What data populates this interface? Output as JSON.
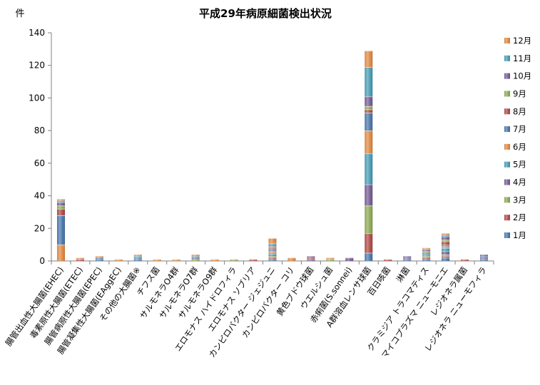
{
  "chart_data": {
    "type": "bar",
    "stacked": true,
    "title": "平成29年病原細菌検出状況",
    "ylabel": "件",
    "xlabel": "",
    "ylim": [
      0,
      140
    ],
    "yticks": [
      0,
      20,
      40,
      60,
      80,
      100,
      120,
      140
    ],
    "grid": false,
    "legend_position": "right",
    "categories": [
      "腸管出血性大腸菌(EHEC)",
      "毒素原性大腸菌(ETEC)",
      "腸管病原性大腸菌(EPEC)",
      "腸管凝集性大腸菌(EAggEC)",
      "その他の大腸菌※",
      "チフス菌",
      "サルモネラO4群",
      "サルモネラO7群",
      "サルモネラO9群",
      "エロモナス ハイドロフィラ",
      "エロモナス ソブリア",
      "カンピロバクター ジェジュニ",
      "カンピロバクター コリ",
      "黄色ブドウ球菌",
      "ウエルシュ菌",
      "赤痢菌(S.sonnei)",
      "A群溶血レンサ球菌",
      "百日咳菌",
      "淋菌",
      "クラミジア トラコマティス",
      "マイコプラズマ ニューモニエ",
      "レジオネラ属菌",
      "レジオネラ ニューモフィラ"
    ],
    "series": [
      {
        "name": "1月",
        "color": "#4572A7",
        "values": [
          0,
          0,
          1,
          0,
          1,
          0,
          0,
          0,
          0,
          0,
          0,
          1,
          0,
          0,
          0,
          0,
          5,
          0,
          1,
          1,
          2,
          0,
          1
        ]
      },
      {
        "name": "2月",
        "color": "#AA4643",
        "values": [
          0,
          1,
          0,
          0,
          0,
          0,
          0,
          0,
          0,
          0,
          0,
          1,
          0,
          0,
          0,
          0,
          12,
          0,
          0,
          1,
          1,
          0,
          0
        ]
      },
      {
        "name": "3月",
        "color": "#89A54E",
        "values": [
          0,
          0,
          0,
          0,
          0,
          0,
          0,
          1,
          0,
          0,
          0,
          1,
          0,
          0,
          0,
          0,
          17,
          0,
          0,
          1,
          1,
          0,
          0
        ]
      },
      {
        "name": "4月",
        "color": "#71588F",
        "values": [
          0,
          0,
          0,
          0,
          0,
          0,
          0,
          1,
          0,
          0,
          0,
          1,
          0,
          1,
          0,
          0,
          13,
          0,
          1,
          0,
          2,
          0,
          1
        ]
      },
      {
        "name": "5月",
        "color": "#4198AF",
        "values": [
          0,
          0,
          0,
          0,
          0,
          0,
          0,
          1,
          0,
          0,
          0,
          1,
          0,
          0,
          0,
          0,
          19,
          0,
          0,
          1,
          2,
          0,
          0
        ]
      },
      {
        "name": "6月",
        "color": "#DB843D",
        "values": [
          10,
          0,
          0,
          0,
          0,
          0,
          0,
          0,
          0,
          0,
          0,
          1,
          0,
          0,
          0,
          0,
          14,
          0,
          0,
          0,
          1,
          0,
          0
        ]
      },
      {
        "name": "7月",
        "color": "#4572A7",
        "values": [
          18,
          0,
          1,
          0,
          1,
          0,
          0,
          0,
          0,
          0,
          0,
          1,
          0,
          0,
          0,
          0,
          11,
          0,
          0,
          1,
          1,
          0,
          1
        ]
      },
      {
        "name": "8月",
        "color": "#AA4643",
        "values": [
          4,
          0,
          0,
          0,
          0,
          0,
          0,
          0,
          0,
          0,
          1,
          1,
          0,
          1,
          0,
          0,
          2,
          1,
          0,
          0,
          2,
          1,
          0
        ]
      },
      {
        "name": "9月",
        "color": "#89A54E",
        "values": [
          2,
          0,
          0,
          0,
          0,
          0,
          0,
          0,
          0,
          1,
          0,
          1,
          0,
          0,
          1,
          0,
          2,
          0,
          0,
          1,
          1,
          0,
          0
        ]
      },
      {
        "name": "10月",
        "color": "#71588F",
        "values": [
          2,
          0,
          0,
          0,
          0,
          0,
          0,
          0,
          0,
          0,
          0,
          1,
          0,
          1,
          0,
          2,
          6,
          0,
          1,
          1,
          2,
          0,
          1
        ]
      },
      {
        "name": "11月",
        "color": "#4198AF",
        "values": [
          1,
          0,
          0,
          0,
          1,
          0,
          0,
          0,
          0,
          0,
          0,
          1,
          0,
          0,
          0,
          0,
          18,
          0,
          0,
          0,
          1,
          0,
          0
        ]
      },
      {
        "name": "12月",
        "color": "#DB843D",
        "values": [
          1,
          1,
          1,
          1,
          1,
          1,
          1,
          1,
          1,
          0,
          0,
          3,
          2,
          0,
          1,
          0,
          10,
          0,
          0,
          1,
          1,
          0,
          0
        ]
      }
    ]
  }
}
